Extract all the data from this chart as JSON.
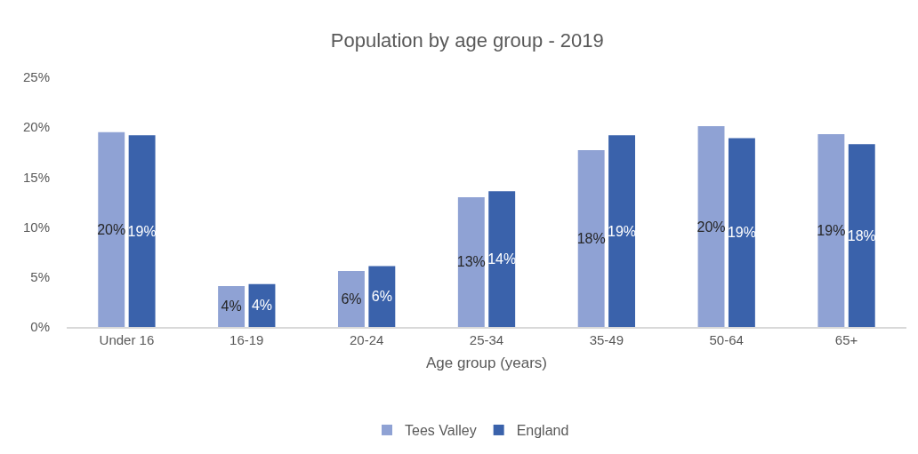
{
  "chart_data": {
    "type": "bar",
    "title": "Population by age group - 2019",
    "xlabel": "Age group (years)",
    "categories": [
      "Under 16",
      "16-19",
      "20-24",
      "25-34",
      "35-49",
      "50-64",
      "65+"
    ],
    "series": [
      {
        "name": "Tees Valley",
        "color": "#8fa2d4",
        "values": [
          19.5,
          4.1,
          5.6,
          13.0,
          17.7,
          20.1,
          19.3
        ],
        "value_labels": [
          "20%",
          "4%",
          "6%",
          "13%",
          "18%",
          "20%",
          "19%"
        ]
      },
      {
        "name": "England",
        "color": "#3a62ab",
        "values": [
          19.2,
          4.3,
          6.1,
          13.6,
          19.2,
          18.9,
          18.3
        ],
        "value_labels": [
          "19%",
          "4%",
          "6%",
          "14%",
          "19%",
          "19%",
          "18%"
        ]
      }
    ],
    "ylim": [
      0,
      25
    ],
    "yticks": [
      {
        "value": 0,
        "label": "0%"
      },
      {
        "value": 5,
        "label": "5%"
      },
      {
        "value": 10,
        "label": "10%"
      },
      {
        "value": 15,
        "label": "15%"
      },
      {
        "value": 20,
        "label": "20%"
      },
      {
        "value": 25,
        "label": "25%"
      }
    ],
    "grid": false,
    "legend": "bottom"
  }
}
